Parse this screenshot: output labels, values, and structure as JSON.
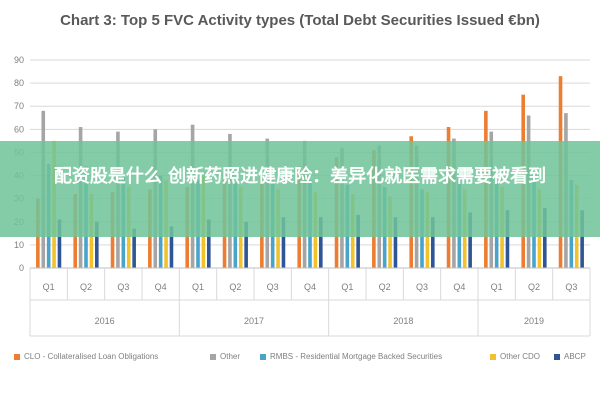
{
  "chart_data": {
    "type": "bar",
    "title": "Chart 3: Top 5 FVC Activity types (Total Debt Securities Issued €bn)",
    "ylim": [
      0,
      90
    ],
    "yticks": [
      0,
      10,
      20,
      30,
      40,
      50,
      60,
      70,
      80,
      90
    ],
    "grid": true,
    "legend_position": "bottom",
    "categories": [
      "Q1",
      "Q2",
      "Q3",
      "Q4",
      "Q1",
      "Q2",
      "Q3",
      "Q4",
      "Q1",
      "Q2",
      "Q3",
      "Q4",
      "Q1",
      "Q2",
      "Q3"
    ],
    "years": [
      {
        "label": "2016",
        "count": 4
      },
      {
        "label": "2017",
        "count": 4
      },
      {
        "label": "2018",
        "count": 4
      },
      {
        "label": "2019",
        "count": 3
      }
    ],
    "series": [
      {
        "name": "CLO - Collateralised Loan Obligations",
        "color": "#ed7d31",
        "values": [
          30,
          32,
          33,
          34,
          35,
          38,
          40,
          44,
          48,
          51,
          57,
          61,
          68,
          75,
          83
        ]
      },
      {
        "name": "Other",
        "color": "#a5a5a5",
        "values": [
          68,
          61,
          59,
          60,
          62,
          58,
          56,
          55,
          52,
          53,
          53,
          56,
          59,
          66,
          67
        ]
      },
      {
        "name": "RMBS - Residential Mortgage Backed Securities",
        "color": "#4aa3c8",
        "values": [
          45,
          44,
          40,
          40,
          38,
          37,
          38,
          38,
          36,
          35,
          34,
          40,
          37,
          40,
          38
        ]
      },
      {
        "name": "Other CDO",
        "color": "#f2c12e",
        "values": [
          55,
          32,
          35,
          38,
          40,
          35,
          34,
          33,
          32,
          31,
          33,
          34,
          35,
          34,
          36
        ]
      },
      {
        "name": "ABCP",
        "color": "#2f5597",
        "values": [
          21,
          20,
          17,
          18,
          21,
          20,
          22,
          22,
          23,
          22,
          22,
          24,
          25,
          26,
          25
        ]
      }
    ]
  },
  "overlay": {
    "text": "配资股是什么 创新药照进健康险：差异化就医需求需要被看到"
  }
}
